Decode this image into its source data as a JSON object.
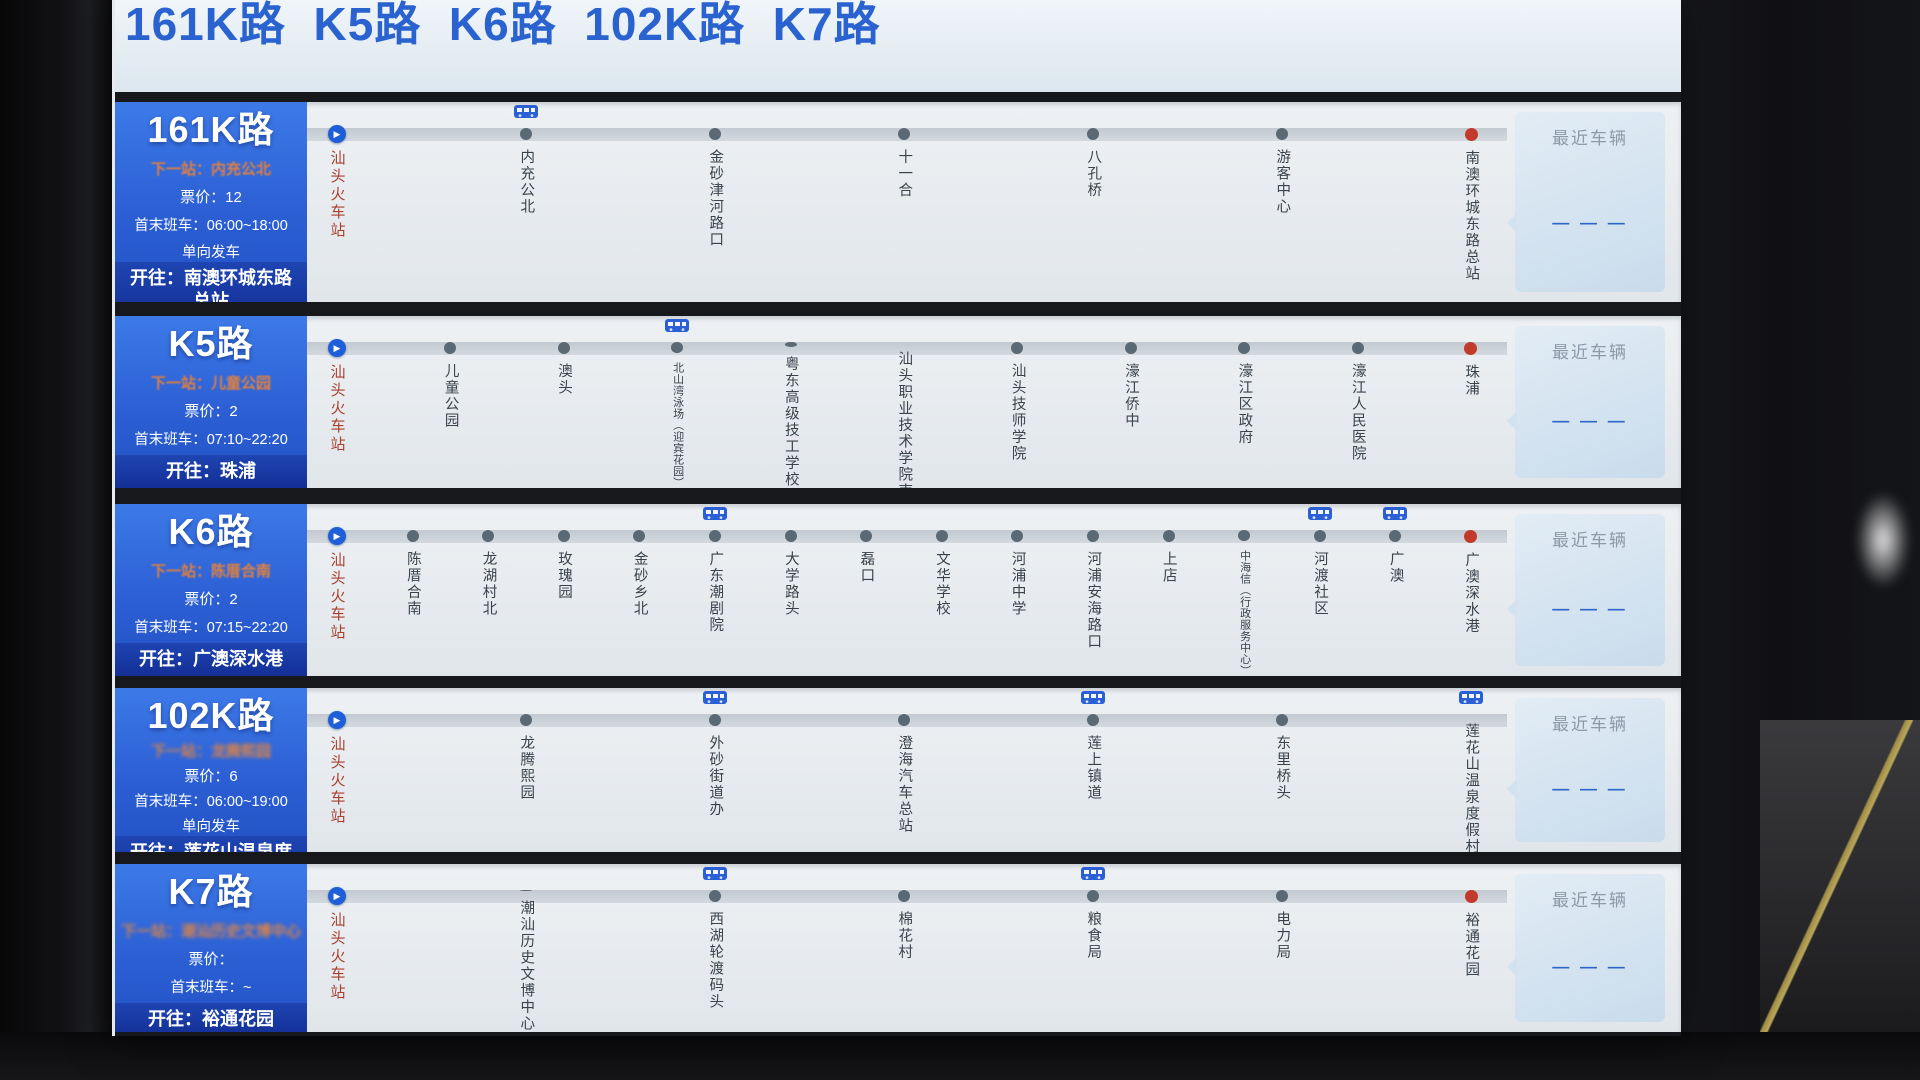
{
  "header": {
    "title": "161K路  K5路  K6路  102K路  K7路"
  },
  "labels": {
    "nearest_vehicle": "最近车辆",
    "no_data": "— — —"
  },
  "colors": {
    "accent_blue": "#2a63cf",
    "card_blue": "#2c5fd4",
    "dest_bar_blue": "#142f96",
    "next_stop_orange": "#e1813e",
    "origin_red": "#a8402e",
    "terminal_dot_red": "#c23a2b",
    "stop_dot_gray": "#5b6974"
  },
  "routes": [
    {
      "name": "161K路",
      "next": "下一站：内充公北",
      "fare": "票价：12",
      "hours": "首末班车：06:00~18:00",
      "note": "单向发车",
      "dest": "开往：南澳环城东路总站",
      "origin": "汕头火车站",
      "stops": [
        {
          "label": "内充公北",
          "bus": true
        },
        {
          "label": "金砂津河路口"
        },
        {
          "label": "十一合"
        },
        {
          "label": "八孔桥"
        },
        {
          "label": "游客中心"
        },
        {
          "label": "南澳环城东路总站",
          "terminal": true
        }
      ]
    },
    {
      "name": "K5路",
      "next": "下一站：儿童公园",
      "fare": "票价：2",
      "hours": "首末班车：07:10~22:20",
      "note": "",
      "dest": "开往：珠浦",
      "origin": "汕头火车站",
      "stops": [
        {
          "label": "儿童公园"
        },
        {
          "label": "澳头"
        },
        {
          "label": "北山湾泳场（迎宾花园）",
          "small": true,
          "bus": true
        },
        {
          "label": "粤东高级技工学校"
        },
        {
          "label": "汕头职业技术学院南"
        },
        {
          "label": "汕头技师学院"
        },
        {
          "label": "濠江侨中"
        },
        {
          "label": "濠江区政府"
        },
        {
          "label": "濠江人民医院"
        },
        {
          "label": "珠浦",
          "terminal": true
        }
      ]
    },
    {
      "name": "K6路",
      "next": "下一站：陈厝合南",
      "fare": "票价：2",
      "hours": "首末班车：07:15~22:20",
      "note": "",
      "dest": "开往：广澳深水港",
      "origin": "汕头火车站",
      "stops": [
        {
          "label": "陈厝合南"
        },
        {
          "label": "龙湖村北"
        },
        {
          "label": "玫瑰园"
        },
        {
          "label": "金砂乡北"
        },
        {
          "label": "广东潮剧院",
          "bus": true
        },
        {
          "label": "大学路头"
        },
        {
          "label": "磊口"
        },
        {
          "label": "文华学校"
        },
        {
          "label": "河浦中学"
        },
        {
          "label": "河浦安海路口"
        },
        {
          "label": "上店"
        },
        {
          "label": "中海信（行政服务中心）",
          "small": true
        },
        {
          "label": "河渡社区",
          "bus": true
        },
        {
          "label": "广澳",
          "bus": true
        },
        {
          "label": "广澳深水港",
          "terminal": true
        }
      ]
    },
    {
      "name": "102K路",
      "next": "下一站：龙腾熙园",
      "fare": "票价：6",
      "hours": "首末班车：06:00~19:00",
      "note": "单向发车",
      "dest": "开往：莲花山温泉度假村",
      "origin": "汕头火车站",
      "stops": [
        {
          "label": "龙腾熙园"
        },
        {
          "label": "外砂街道办",
          "bus": true
        },
        {
          "label": "澄海汽车总站"
        },
        {
          "label": "莲上镇道",
          "bus": true
        },
        {
          "label": "东里桥头"
        },
        {
          "label": "莲花山温泉度假村",
          "terminal": true,
          "bus": true
        }
      ]
    },
    {
      "name": "K7路",
      "next": "下一站：潮汕历史文博中心",
      "fare": "票价：",
      "hours": "首末班车：~",
      "note": "",
      "dest": "开往：裕通花园",
      "origin": "汕头火车站",
      "stops": [
        {
          "label": "潮汕历史文博中心"
        },
        {
          "label": "西湖轮渡码头",
          "bus": true
        },
        {
          "label": "棉花村"
        },
        {
          "label": "粮食局",
          "bus": true
        },
        {
          "label": "电力局"
        },
        {
          "label": "裕通花园",
          "terminal": true
        }
      ]
    }
  ]
}
